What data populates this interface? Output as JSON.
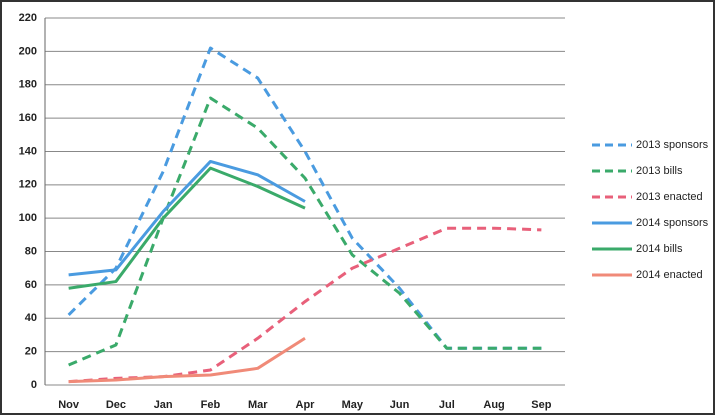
{
  "chart_data": {
    "type": "line",
    "categories": [
      "Nov",
      "Dec",
      "Jan",
      "Feb",
      "Mar",
      "Apr",
      "May",
      "Jun",
      "Jul",
      "Aug",
      "Sep"
    ],
    "series": [
      {
        "name": "2013 sponsors",
        "color": "#4a9be0",
        "dashed": true,
        "values": [
          42,
          70,
          128,
          202,
          184,
          140,
          88,
          58,
          22,
          22,
          22
        ]
      },
      {
        "name": "2013 bills",
        "color": "#3aaa6a",
        "dashed": true,
        "values": [
          12,
          24,
          100,
          172,
          154,
          124,
          78,
          55,
          22,
          22,
          22
        ]
      },
      {
        "name": "2013 enacted",
        "color": "#e8607a",
        "dashed": true,
        "values": [
          2,
          4,
          5,
          9,
          28,
          50,
          70,
          82,
          94,
          94,
          93
        ]
      },
      {
        "name": "2014 sponsors",
        "color": "#4a9be0",
        "dashed": false,
        "values": [
          66,
          69,
          104,
          134,
          126,
          110,
          null,
          null,
          null,
          null,
          null
        ]
      },
      {
        "name": "2014 bills",
        "color": "#3aaa6a",
        "dashed": false,
        "values": [
          58,
          62,
          100,
          130,
          119,
          106,
          null,
          null,
          null,
          null,
          null
        ]
      },
      {
        "name": "2014 enacted",
        "color": "#f08a78",
        "dashed": false,
        "values": [
          2,
          3,
          5,
          6,
          10,
          28,
          null,
          null,
          null,
          null,
          null
        ]
      }
    ],
    "ylim": [
      0,
      220
    ],
    "yticks": [
      0,
      20,
      40,
      60,
      80,
      100,
      120,
      140,
      160,
      180,
      200,
      220
    ],
    "grid": true,
    "legend": "right"
  }
}
